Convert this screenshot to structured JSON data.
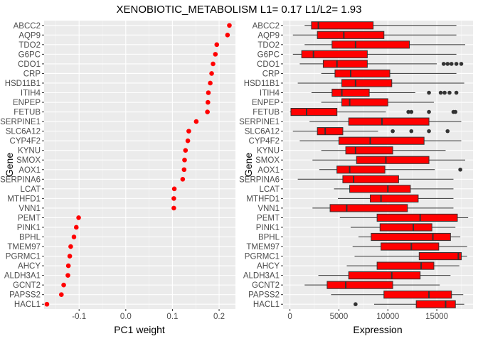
{
  "chart_data": {
    "title": "XENOBIOTIC_METABOLISM L1= 0.17 L1/L2= 1.93",
    "genes": [
      "ABCC2",
      "AQP9",
      "TDO2",
      "G6PC",
      "CDO1",
      "CRP",
      "HSD11B1",
      "ITIH4",
      "ENPEP",
      "FETUB",
      "SERPINE1",
      "SLC6A12",
      "CYP4F2",
      "KYNU",
      "SMOX",
      "AOX1",
      "SERPINA6",
      "LCAT",
      "MTHFD1",
      "VNN1",
      "PEMT",
      "PINK1",
      "BPHL",
      "TMEM97",
      "PGRMC1",
      "AHCY",
      "ALDH3A1",
      "GCNT2",
      "PAPSS2",
      "HACL1"
    ],
    "panels": [
      {
        "type": "scatter",
        "xlabel": "PC1 weight",
        "ylabel": "Gene",
        "xlim": [
          -0.175,
          0.235
        ],
        "xticks": [
          -0.1,
          0.0,
          0.1,
          0.2
        ],
        "xtick_labels": [
          "-0.1",
          "0.0",
          "0.1",
          "0.2"
        ],
        "point_color": "#ff0000",
        "values": [
          0.222,
          0.218,
          0.195,
          0.192,
          0.187,
          0.184,
          0.181,
          0.177,
          0.176,
          0.175,
          0.151,
          0.135,
          0.133,
          0.128,
          0.126,
          0.125,
          0.122,
          0.104,
          0.103,
          0.103,
          -0.101,
          -0.106,
          -0.111,
          -0.118,
          -0.12,
          -0.123,
          -0.124,
          -0.133,
          -0.138,
          -0.169
        ]
      },
      {
        "type": "boxplot",
        "xlabel": "Expression",
        "ylabel": "Gene",
        "xlim": [
          -700,
          18700
        ],
        "xticks": [
          0,
          5000,
          10000,
          15000
        ],
        "xtick_labels": [
          "0",
          "5000",
          "10000",
          "15000"
        ],
        "box_color": "#ff0000",
        "boxes": [
          {
            "gene": "ABCC2",
            "whislo": 1500,
            "q1": 2200,
            "med": 2900,
            "q3": 8500,
            "whishi": 17000,
            "outliers": []
          },
          {
            "gene": "AQP9",
            "whislo": 300,
            "q1": 2800,
            "med": 5500,
            "q3": 9600,
            "whishi": 17000,
            "outliers": []
          },
          {
            "gene": "TDO2",
            "whislo": 1500,
            "q1": 4300,
            "med": 6700,
            "q3": 12200,
            "whishi": 17900,
            "outliers": []
          },
          {
            "gene": "G6PC",
            "whislo": 300,
            "q1": 1200,
            "med": 2400,
            "q3": 7900,
            "whishi": 17000,
            "outliers": []
          },
          {
            "gene": "CDO1",
            "whislo": 1000,
            "q1": 3400,
            "med": 4800,
            "q3": 7900,
            "whishi": 15000,
            "outliers": [
              15700,
              16100,
              16500,
              17000,
              17500
            ]
          },
          {
            "gene": "CRP",
            "whislo": 3200,
            "q1": 4600,
            "med": 6200,
            "q3": 10200,
            "whishi": 17000,
            "outliers": []
          },
          {
            "gene": "HSD11B1",
            "whislo": 800,
            "q1": 5300,
            "med": 6700,
            "q3": 10400,
            "whishi": 17800,
            "outliers": []
          },
          {
            "gene": "ITIH4",
            "whislo": 2200,
            "q1": 4300,
            "med": 5300,
            "q3": 8100,
            "whishi": 12800,
            "outliers": [
              14200,
              15400,
              15800,
              16300,
              17000
            ]
          },
          {
            "gene": "ENPEP",
            "whislo": 3200,
            "q1": 5300,
            "med": 6100,
            "q3": 10000,
            "whishi": 14700,
            "outliers": []
          },
          {
            "gene": "FETUB",
            "whislo": 0,
            "q1": 100,
            "med": 1700,
            "q3": 4800,
            "whishi": 9800,
            "outliers": [
              12100,
              12400,
              14200,
              16700,
              16900
            ]
          },
          {
            "gene": "SERPINE1",
            "whislo": 2000,
            "q1": 6000,
            "med": 9400,
            "q3": 14200,
            "whishi": 17500,
            "outliers": []
          },
          {
            "gene": "SLC6A12",
            "whislo": 300,
            "q1": 2800,
            "med": 3600,
            "q3": 5400,
            "whishi": 9000,
            "outliers": [
              10500,
              12400,
              14200,
              16100
            ]
          },
          {
            "gene": "CYP4F2",
            "whislo": 1000,
            "q1": 5000,
            "med": 8200,
            "q3": 13700,
            "whishi": 17500,
            "outliers": []
          },
          {
            "gene": "KYNU",
            "whislo": 3200,
            "q1": 5700,
            "med": 6700,
            "q3": 10500,
            "whishi": 15900,
            "outliers": []
          },
          {
            "gene": "SMOX",
            "whislo": 2300,
            "q1": 6800,
            "med": 9800,
            "q3": 14200,
            "whishi": 17900,
            "outliers": []
          },
          {
            "gene": "AOX1",
            "whislo": 3000,
            "q1": 4800,
            "med": 6100,
            "q3": 9700,
            "whishi": 14800,
            "outliers": [
              17400
            ]
          },
          {
            "gene": "SERPINA6",
            "whislo": 800,
            "q1": 5400,
            "med": 6500,
            "q3": 11100,
            "whishi": 16700,
            "outliers": []
          },
          {
            "gene": "LCAT",
            "whislo": 4500,
            "q1": 6100,
            "med": 10000,
            "q3": 12300,
            "whishi": 16700,
            "outliers": []
          },
          {
            "gene": "MTHFD1",
            "whislo": 4900,
            "q1": 8200,
            "med": 9300,
            "q3": 13100,
            "whishi": 16700,
            "outliers": []
          },
          {
            "gene": "VNN1",
            "whislo": 2300,
            "q1": 4100,
            "med": 5800,
            "q3": 12000,
            "whishi": 16700,
            "outliers": []
          },
          {
            "gene": "PEMT",
            "whislo": 5100,
            "q1": 8900,
            "med": 13300,
            "q3": 17100,
            "whishi": 18200,
            "outliers": []
          },
          {
            "gene": "PINK1",
            "whislo": 6200,
            "q1": 9200,
            "med": 12600,
            "q3": 14500,
            "whishi": 16900,
            "outliers": []
          },
          {
            "gene": "BPHL",
            "whislo": 7000,
            "q1": 8300,
            "med": 14600,
            "q3": 16400,
            "whishi": 17400,
            "outliers": []
          },
          {
            "gene": "TMEM97",
            "whislo": 6400,
            "q1": 9300,
            "med": 12400,
            "q3": 15200,
            "whishi": 18100,
            "outliers": []
          },
          {
            "gene": "PGRMC1",
            "whislo": 6600,
            "q1": 13200,
            "med": 17200,
            "q3": 17500,
            "whishi": 18100,
            "outliers": []
          },
          {
            "gene": "AHCY",
            "whislo": 5800,
            "q1": 8900,
            "med": 13400,
            "q3": 14700,
            "whishi": 17300,
            "outliers": []
          },
          {
            "gene": "ALDH3A1",
            "whislo": 2900,
            "q1": 6000,
            "med": 10400,
            "q3": 13300,
            "whishi": 16400,
            "outliers": []
          },
          {
            "gene": "GCNT2",
            "whislo": 1500,
            "q1": 3800,
            "med": 5700,
            "q3": 10500,
            "whishi": 15300,
            "outliers": []
          },
          {
            "gene": "PAPSS2",
            "whislo": 4200,
            "q1": 9600,
            "med": 14200,
            "q3": 16500,
            "whishi": 17700,
            "outliers": []
          },
          {
            "gene": "HACL1",
            "whislo": 8600,
            "q1": 12900,
            "med": 15900,
            "q3": 16900,
            "whishi": 17800,
            "outliers": [
              6700
            ]
          }
        ]
      }
    ]
  }
}
